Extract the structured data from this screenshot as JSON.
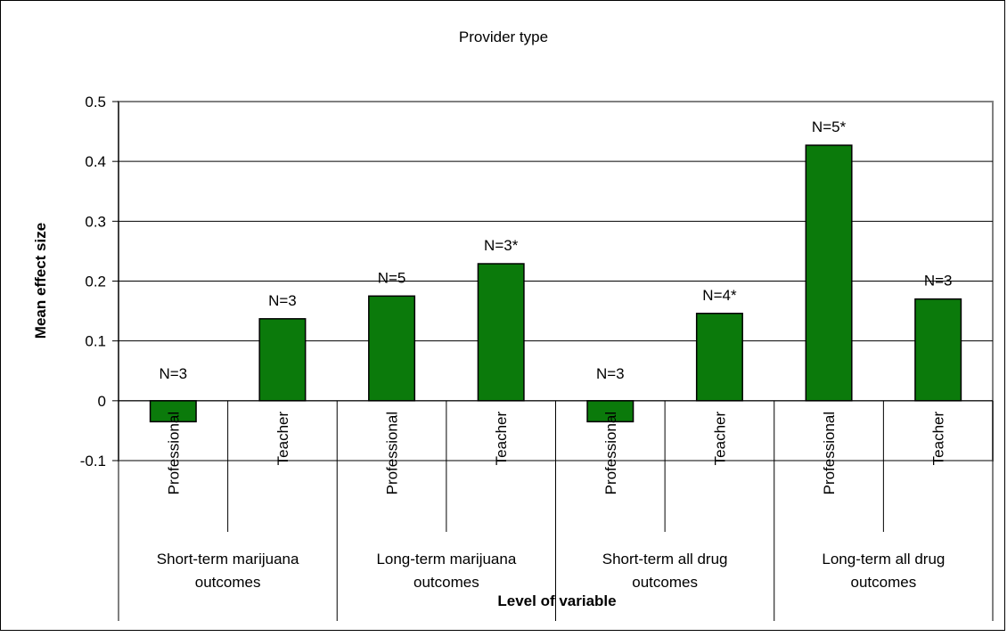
{
  "chart_data": {
    "type": "bar",
    "title": "Provider type",
    "ylabel": "Mean effect size",
    "xlabel": "Level of variable",
    "ylim": [
      -0.1,
      0.5
    ],
    "yticks": [
      0.5,
      0.4,
      0.3,
      0.2,
      0.1,
      0,
      -0.1
    ],
    "ytick_labels": [
      "0.5",
      "0.4",
      "0.3",
      "0.2",
      "0.1",
      "0",
      "-0.1"
    ],
    "grid": true,
    "bar_color": "#0b7a0b",
    "groups": [
      {
        "name": [
          "Short-term marijuana",
          "outcomes"
        ],
        "bars": [
          {
            "category": "Professional",
            "value": -0.035,
            "label": "N=3"
          },
          {
            "category": "Teacher",
            "value": 0.137,
            "label": "N=3"
          }
        ]
      },
      {
        "name": [
          "Long-term marijuana",
          "outcomes"
        ],
        "bars": [
          {
            "category": "Professional",
            "value": 0.175,
            "label": "N=5"
          },
          {
            "category": "Teacher",
            "value": 0.229,
            "label": "N=3*"
          }
        ]
      },
      {
        "name": [
          "Short-term all drug",
          "outcomes"
        ],
        "bars": [
          {
            "category": "Professional",
            "value": -0.035,
            "label": "N=3"
          },
          {
            "category": "Teacher",
            "value": 0.146,
            "label": "N=4*"
          }
        ]
      },
      {
        "name": [
          "Long-term all drug",
          "outcomes"
        ],
        "bars": [
          {
            "category": "Professional",
            "value": 0.427,
            "label": "N=5*"
          },
          {
            "category": "Teacher",
            "value": 0.17,
            "label": "N=3"
          }
        ]
      }
    ]
  }
}
